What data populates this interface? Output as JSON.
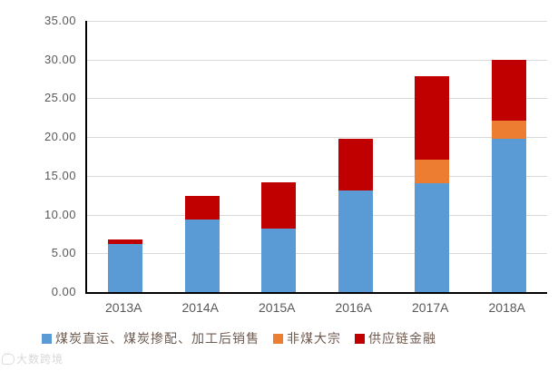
{
  "chart_data": {
    "type": "bar",
    "stacked": true,
    "title": "",
    "categories": [
      "2013A",
      "2014A",
      "2015A",
      "2016A",
      "2017A",
      "2018A"
    ],
    "series": [
      {
        "name": "煤炭直运、煤炭掺配、加工后销售",
        "color": "#5b9bd5",
        "values": [
          6.2,
          9.4,
          8.2,
          13.1,
          14.0,
          19.8
        ]
      },
      {
        "name": "非煤大宗",
        "color": "#ed7d31",
        "values": [
          0,
          0,
          0,
          0,
          3.1,
          2.3
        ]
      },
      {
        "name": "供应链金融",
        "color": "#c00000",
        "values": [
          0.6,
          3.0,
          6.0,
          6.7,
          10.8,
          7.9
        ]
      }
    ],
    "ylim": [
      0,
      35
    ],
    "ytick_step": 5,
    "ytick_labels": [
      "0.00",
      "5.00",
      "10.00",
      "15.00",
      "20.00",
      "25.00",
      "30.00",
      "35.00"
    ],
    "xlabel": "",
    "ylabel": "",
    "grid": true,
    "legend_position": "bottom"
  },
  "colors": {
    "axis": "#000000",
    "gridline": "#d9d9d9",
    "tick_text": "#595959",
    "legend_text": "#6f5b50",
    "background": "#ffffff"
  },
  "watermark": {
    "text": "大数跨境"
  }
}
